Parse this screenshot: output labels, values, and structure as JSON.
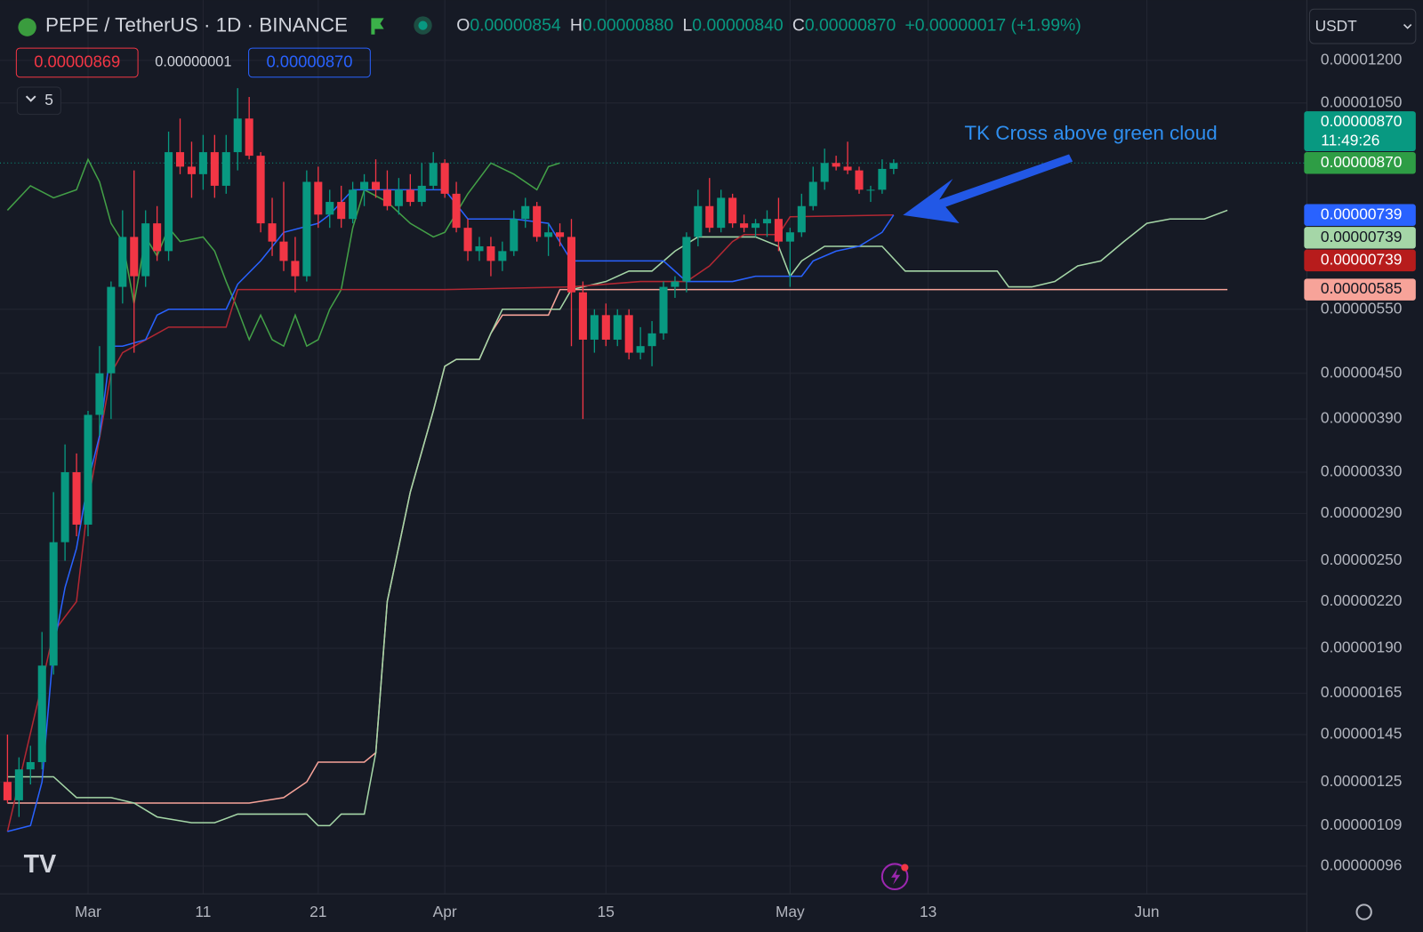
{
  "header": {
    "symbol": "PEPE / TetherUS · 1D · BINANCE",
    "ohlc": [
      {
        "label": "O",
        "value": "0.00000854"
      },
      {
        "label": "H",
        "value": "0.00000880"
      },
      {
        "label": "L",
        "value": "0.00000840"
      },
      {
        "label": "C",
        "value": "0.00000870"
      }
    ],
    "change": "+0.00000017 (+1.99%)",
    "inputs": [
      "0.00000869",
      "0.00000001",
      "0.00000870"
    ],
    "indicator_count": 5,
    "currency": "USDT"
  },
  "chart_data": {
    "type": "candlestick",
    "log_scale": true,
    "grid": true,
    "annotation": "TK Cross above green cloud",
    "up_color": "#089981",
    "down_color": "#f23645",
    "xlim": [
      -7.65,
      105.9
    ],
    "xticks": [
      {
        "value": 0,
        "label": "Mar"
      },
      {
        "value": 10,
        "label": "11"
      },
      {
        "value": 20,
        "label": "21"
      },
      {
        "value": 31,
        "label": "Apr"
      },
      {
        "value": 45,
        "label": "15"
      },
      {
        "value": 61,
        "label": "May"
      },
      {
        "value": 73,
        "label": "13"
      },
      {
        "value": 92,
        "label": "Jun"
      }
    ],
    "ylim": [
      8.8e-07,
      1.45e-05
    ],
    "yticks": [
      {
        "value": 1.2e-05,
        "label": "0.00001200"
      },
      {
        "value": 1.05e-05,
        "label": "0.00001050"
      },
      {
        "value": 5.5e-06,
        "label": "0.00000550"
      },
      {
        "value": 4.5e-06,
        "label": "0.00000450"
      },
      {
        "value": 3.9e-06,
        "label": "0.00000390"
      },
      {
        "value": 3.3e-06,
        "label": "0.00000330"
      },
      {
        "value": 2.9e-06,
        "label": "0.00000290"
      },
      {
        "value": 2.5e-06,
        "label": "0.00000250"
      },
      {
        "value": 2.2e-06,
        "label": "0.00000220"
      },
      {
        "value": 1.9e-06,
        "label": "0.00000190"
      },
      {
        "value": 1.65e-06,
        "label": "0.00000165"
      },
      {
        "value": 1.45e-06,
        "label": "0.00000145"
      },
      {
        "value": 1.25e-06,
        "label": "0.00000125"
      },
      {
        "value": 1.09e-06,
        "label": "0.00000109"
      },
      {
        "value": 9.6e-07,
        "label": "0.00000096"
      }
    ],
    "x": [
      -7,
      -6,
      -5,
      -4,
      -3,
      -2,
      -1,
      0,
      1,
      2,
      3,
      4,
      5,
      6,
      7,
      8,
      9,
      10,
      11,
      12,
      13,
      14,
      15,
      16,
      17,
      18,
      19,
      20,
      21,
      22,
      23,
      24,
      25,
      26,
      27,
      28,
      29,
      30,
      31,
      32,
      33,
      34,
      35,
      36,
      37,
      38,
      39,
      40,
      41,
      42,
      43,
      44,
      45,
      46,
      47,
      48,
      49,
      50,
      51,
      52,
      53,
      54,
      55,
      56,
      57,
      58,
      59,
      60,
      61,
      62,
      63,
      64,
      65,
      66,
      67,
      68,
      69,
      70
    ],
    "open": [
      1.25e-06,
      1.18e-06,
      1.3e-06,
      1.33e-06,
      1.8e-06,
      2.65e-06,
      3.3e-06,
      2.8e-06,
      3.95e-06,
      4.5e-06,
      5.9e-06,
      6.9e-06,
      6.1e-06,
      7.2e-06,
      6.6e-06,
      9e-06,
      8.6e-06,
      8.4e-06,
      9e-06,
      8.1e-06,
      9e-06,
      1e-05,
      8.9e-06,
      7.2e-06,
      6.8e-06,
      6.4e-06,
      6.1e-06,
      8.2e-06,
      7.4e-06,
      7.7e-06,
      7.3e-06,
      8e-06,
      8.2e-06,
      8e-06,
      7.6e-06,
      8e-06,
      7.7e-06,
      8.1e-06,
      8.7e-06,
      7.9e-06,
      7.1e-06,
      6.6e-06,
      6.7e-06,
      6.4e-06,
      6.6e-06,
      7.3e-06,
      7.6e-06,
      6.9e-06,
      7e-06,
      6.9e-06,
      5.8e-06,
      5e-06,
      5.4e-06,
      5e-06,
      5.4e-06,
      4.8e-06,
      4.9e-06,
      5.1e-06,
      5.9e-06,
      6e-06,
      6.9e-06,
      7.6e-06,
      7.1e-06,
      7.8e-06,
      7.2e-06,
      7.1e-06,
      7.2e-06,
      7.3e-06,
      6.8e-06,
      7e-06,
      7.6e-06,
      8.2e-06,
      8.7e-06,
      8.6e-06,
      8.5e-06,
      8e-06,
      8e-06,
      8.54e-06
    ],
    "high": [
      1.45e-06,
      1.35e-06,
      1.4e-06,
      2e-06,
      3.1e-06,
      3.6e-06,
      3.5e-06,
      4e-06,
      4.9e-06,
      6e-06,
      7.5e-06,
      8.5e-06,
      7.5e-06,
      7.6e-06,
      9.6e-06,
      1e-05,
      9.3e-06,
      9.5e-06,
      9.5e-06,
      9.5e-06,
      1.1e-05,
      1.07e-05,
      9e-06,
      7.8e-06,
      8.2e-06,
      6.9e-06,
      8.5e-06,
      8.6e-06,
      8e-06,
      8.1e-06,
      8.2e-06,
      8.4e-06,
      8.8e-06,
      8.5e-06,
      8.3e-06,
      8.4e-06,
      8.7e-06,
      9e-06,
      8.8e-06,
      8.2e-06,
      7.3e-06,
      6.9e-06,
      6.9e-06,
      6.8e-06,
      7.5e-06,
      7.8e-06,
      7.7e-06,
      7.2e-06,
      7.2e-06,
      7.3e-06,
      6e-06,
      5.5e-06,
      5.6e-06,
      5.5e-06,
      5.5e-06,
      5.2e-06,
      5.3e-06,
      6e-06,
      6.1e-06,
      7e-06,
      8e-06,
      8.3e-06,
      8e-06,
      7.9e-06,
      7.4e-06,
      7.3e-06,
      7.5e-06,
      7.8e-06,
      7.1e-06,
      7.9e-06,
      8.6e-06,
      9.1e-06,
      8.9e-06,
      9.3e-06,
      8.6e-06,
      8.1e-06,
      8.8e-06,
      8.8e-06
    ],
    "low": [
      1.17e-06,
      1.12e-06,
      1.24e-06,
      1.3e-06,
      1.75e-06,
      2.5e-06,
      2.7e-06,
      2.7e-06,
      3.7e-06,
      3.9e-06,
      5.6e-06,
      4.8e-06,
      5.9e-06,
      6.4e-06,
      6.4e-06,
      8.4e-06,
      7.8e-06,
      8e-06,
      7.8e-06,
      7.9e-06,
      8.5e-06,
      8.8e-06,
      7e-06,
      6.5e-06,
      6.2e-06,
      5.8e-06,
      6e-06,
      7.1e-06,
      7.1e-06,
      7.1e-06,
      7.2e-06,
      7.6e-06,
      7.8e-06,
      7.5e-06,
      7.4e-06,
      7.6e-06,
      7.6e-06,
      8e-06,
      7.8e-06,
      7e-06,
      6.4e-06,
      6.4e-06,
      6.1e-06,
      6.2e-06,
      6.5e-06,
      7.1e-06,
      6.8e-06,
      6.5e-06,
      6.7e-06,
      4.9e-06,
      3.9e-06,
      4.8e-06,
      4.9e-06,
      4.9e-06,
      4.7e-06,
      4.7e-06,
      4.6e-06,
      5e-06,
      5.7e-06,
      5.8e-06,
      6.7e-06,
      7e-06,
      7e-06,
      7.1e-06,
      7e-06,
      6.9e-06,
      6.9e-06,
      6.6e-06,
      5.9e-06,
      6.9e-06,
      7.5e-06,
      8e-06,
      8.5e-06,
      8.4e-06,
      7.9e-06,
      7.7e-06,
      7.9e-06,
      8.4e-06
    ],
    "close": [
      1.18e-06,
      1.3e-06,
      1.33e-06,
      1.8e-06,
      2.65e-06,
      3.3e-06,
      2.8e-06,
      3.95e-06,
      4.5e-06,
      5.9e-06,
      6.9e-06,
      6.1e-06,
      7.2e-06,
      6.6e-06,
      9e-06,
      8.6e-06,
      8.4e-06,
      9e-06,
      8.1e-06,
      9e-06,
      1e-05,
      8.9e-06,
      7.2e-06,
      6.8e-06,
      6.4e-06,
      6.1e-06,
      8.2e-06,
      7.4e-06,
      7.7e-06,
      7.3e-06,
      8e-06,
      8.2e-06,
      8e-06,
      7.6e-06,
      8e-06,
      7.7e-06,
      8.1e-06,
      8.7e-06,
      7.9e-06,
      7.1e-06,
      6.6e-06,
      6.7e-06,
      6.4e-06,
      6.6e-06,
      7.3e-06,
      7.6e-06,
      6.9e-06,
      7e-06,
      6.9e-06,
      5.8e-06,
      5e-06,
      5.4e-06,
      5e-06,
      5.4e-06,
      4.8e-06,
      4.9e-06,
      5.1e-06,
      5.9e-06,
      6e-06,
      6.9e-06,
      7.6e-06,
      7.1e-06,
      7.8e-06,
      7.2e-06,
      7.1e-06,
      7.2e-06,
      7.3e-06,
      6.8e-06,
      7e-06,
      7.6e-06,
      8.2e-06,
      8.7e-06,
      8.6e-06,
      8.5e-06,
      8e-06,
      8e-06,
      8.54e-06,
      8.7e-06
    ],
    "lines": [
      {
        "color": "#43a047",
        "x": [
          -7,
          -5,
          -3,
          -1,
          0,
          1,
          2,
          3,
          4,
          5,
          6,
          7,
          8,
          10,
          11,
          12,
          13,
          14,
          15,
          16,
          17,
          18,
          19,
          20,
          21,
          22,
          23,
          24,
          26,
          28,
          30,
          31,
          33,
          35,
          37,
          39,
          40,
          41
        ],
        "values": [
          7.5e-06,
          8.1e-06,
          7.8e-06,
          8e-06,
          8.8e-06,
          8.2e-06,
          7.2e-06,
          6.8e-06,
          5.6e-06,
          6.9e-06,
          6.5e-06,
          7.1e-06,
          6.8e-06,
          6.9e-06,
          6.6e-06,
          6e-06,
          5.5e-06,
          5e-06,
          5.4e-06,
          5e-06,
          4.9e-06,
          5.4e-06,
          4.9e-06,
          5e-06,
          5.5e-06,
          5.85e-06,
          7.1e-06,
          8e-06,
          7.7e-06,
          7.2e-06,
          6.9e-06,
          7e-06,
          7.9e-06,
          8.7e-06,
          8.4e-06,
          8e-06,
          8.6e-06,
          8.7e-06
        ]
      },
      {
        "color": "#f7a399",
        "x": [
          -7,
          5,
          14,
          17,
          19,
          20,
          24,
          25,
          26,
          28,
          30,
          31,
          32,
          34,
          35,
          36,
          40,
          41,
          99
        ],
        "values": [
          1.17e-06,
          1.17e-06,
          1.17e-06,
          1.19e-06,
          1.25e-06,
          1.33e-06,
          1.33e-06,
          1.37e-06,
          2.2e-06,
          3.1e-06,
          4e-06,
          4.6e-06,
          4.7e-06,
          4.7e-06,
          5.1e-06,
          5.4e-06,
          5.4e-06,
          5.85e-06,
          5.85e-06
        ]
      },
      {
        "color": "#a5d6a7",
        "x": [
          -7,
          -3,
          -1,
          2,
          4,
          6,
          9,
          11,
          13,
          15,
          19,
          20,
          21,
          22,
          24,
          25,
          26,
          28,
          30,
          31,
          32,
          34,
          35,
          36,
          37,
          41,
          42,
          45,
          47,
          49,
          51,
          53,
          56,
          58,
          60,
          61,
          62,
          64,
          67,
          69,
          71,
          73,
          76,
          79,
          80,
          82,
          84,
          86,
          88,
          90,
          92,
          94,
          97,
          99
        ],
        "values": [
          1.27e-06,
          1.27e-06,
          1.19e-06,
          1.19e-06,
          1.17e-06,
          1.12e-06,
          1.1e-06,
          1.1e-06,
          1.13e-06,
          1.13e-06,
          1.13e-06,
          1.09e-06,
          1.09e-06,
          1.13e-06,
          1.13e-06,
          1.37e-06,
          2.2e-06,
          3.1e-06,
          4e-06,
          4.6e-06,
          4.7e-06,
          4.7e-06,
          5.1e-06,
          5.5e-06,
          5.5e-06,
          5.5e-06,
          5.85e-06,
          6e-06,
          6.2e-06,
          6.2e-06,
          6.6e-06,
          6.9e-06,
          6.9e-06,
          6.9e-06,
          6.7e-06,
          6.1e-06,
          6.4e-06,
          6.7e-06,
          6.7e-06,
          6.7e-06,
          6.2e-06,
          6.2e-06,
          6.2e-06,
          6.2e-06,
          5.9e-06,
          5.9e-06,
          6e-06,
          6.3e-06,
          6.4e-06,
          6.8e-06,
          7.2e-06,
          7.3e-06,
          7.3e-06,
          7.5e-06
        ]
      },
      {
        "color": "#b22833",
        "x": [
          -7,
          -4,
          -3,
          -1,
          0,
          2,
          3,
          7,
          12,
          13,
          31,
          42,
          48,
          52,
          54,
          56,
          57,
          60,
          61,
          70
        ],
        "values": [
          1.07e-06,
          1.7e-06,
          2e-06,
          2.2e-06,
          3e-06,
          4.5e-06,
          4.8e-06,
          5.2e-06,
          5.2e-06,
          5.85e-06,
          5.85e-06,
          5.9e-06,
          6e-06,
          6e-06,
          6.3e-06,
          6.8e-06,
          6.95e-06,
          6.95e-06,
          7.35e-06,
          7.39e-06
        ]
      },
      {
        "color": "#2962ff",
        "x": [
          -7,
          -5,
          -4,
          -3,
          -2,
          -1,
          0,
          1,
          2,
          3,
          5,
          6,
          7,
          12,
          13,
          15,
          17,
          20,
          21,
          23,
          25,
          31,
          33,
          37,
          40,
          42,
          50,
          52,
          56,
          58,
          62,
          63,
          65,
          67,
          69,
          70
        ],
        "values": [
          1.07e-06,
          1.09e-06,
          1.25e-06,
          1.9e-06,
          2.3e-06,
          2.6e-06,
          3.2e-06,
          3.7e-06,
          4.9e-06,
          4.9e-06,
          5e-06,
          5.4e-06,
          5.5e-06,
          5.5e-06,
          5.95e-06,
          6.4e-06,
          7e-06,
          7.2e-06,
          7.4e-06,
          8e-06,
          8e-06,
          8e-06,
          7.3e-06,
          7.3e-06,
          7.2e-06,
          6.4e-06,
          6.4e-06,
          6e-06,
          6e-06,
          6.1e-06,
          6.1e-06,
          6.4e-06,
          6.6e-06,
          6.7e-06,
          7e-06,
          7.39e-06
        ]
      }
    ],
    "price_tags": [
      {
        "value": 8.7e-06,
        "label": "0.00000870",
        "countdown": "11:49:26",
        "color": "#089981",
        "text_color": "#ffffff"
      },
      {
        "value": 8.7e-06,
        "label": "0.00000870",
        "color": "#2e9d45",
        "text_color": "#ffffff"
      },
      {
        "value": 7.39e-06,
        "label": "0.00000739",
        "color": "#2962ff",
        "text_color": "#ffffff"
      },
      {
        "value": 7.39e-06,
        "label": "0.00000739",
        "color": "#a5d6a7",
        "text_color": "#131722"
      },
      {
        "value": 7.39e-06,
        "label": "0.00000739",
        "color": "#b71c1c",
        "text_color": "#ffffff"
      },
      {
        "value": 5.85e-06,
        "label": "0.00000585",
        "color": "#f7a399",
        "text_color": "#131722"
      }
    ]
  }
}
